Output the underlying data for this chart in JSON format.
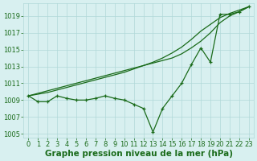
{
  "xlabel": "Graphe pression niveau de la mer (hPa)",
  "x": [
    0,
    1,
    2,
    3,
    4,
    5,
    6,
    7,
    8,
    9,
    10,
    11,
    12,
    13,
    14,
    15,
    16,
    17,
    18,
    19,
    20,
    21,
    22,
    23
  ],
  "y_smooth1": [
    1009.5,
    1009.8,
    1010.1,
    1010.4,
    1010.7,
    1011.0,
    1011.3,
    1011.6,
    1011.9,
    1012.2,
    1012.5,
    1012.8,
    1013.1,
    1013.4,
    1013.7,
    1014.0,
    1014.5,
    1015.2,
    1016.0,
    1017.0,
    1018.2,
    1019.0,
    1019.5,
    1020.1
  ],
  "y_smooth2": [
    1009.5,
    1009.7,
    1009.9,
    1010.2,
    1010.5,
    1010.8,
    1011.1,
    1011.4,
    1011.7,
    1012.0,
    1012.3,
    1012.7,
    1013.1,
    1013.5,
    1014.0,
    1014.6,
    1015.3,
    1016.2,
    1017.2,
    1018.0,
    1018.8,
    1019.3,
    1019.7,
    1020.1
  ],
  "y_jagged": [
    1009.5,
    1008.8,
    1008.8,
    1009.5,
    1009.2,
    1009.0,
    1009.0,
    1009.2,
    1009.5,
    1009.2,
    1009.0,
    1008.5,
    1008.0,
    1005.2,
    1008.0,
    1009.5,
    1011.0,
    1013.2,
    1015.2,
    1013.5,
    1019.2,
    1019.2,
    1019.5,
    1020.1
  ],
  "line_color": "#1a6b1a",
  "marker": "+",
  "bg_color": "#d8f0f0",
  "grid_color": "#b0d8d8",
  "text_color": "#1a6b1a",
  "ylim": [
    1004.5,
    1020.5
  ],
  "yticks": [
    1005,
    1007,
    1009,
    1011,
    1013,
    1015,
    1017,
    1019
  ],
  "xlim": [
    -0.5,
    23.5
  ],
  "tick_fontsize": 6.0,
  "xlabel_fontsize": 7.5
}
